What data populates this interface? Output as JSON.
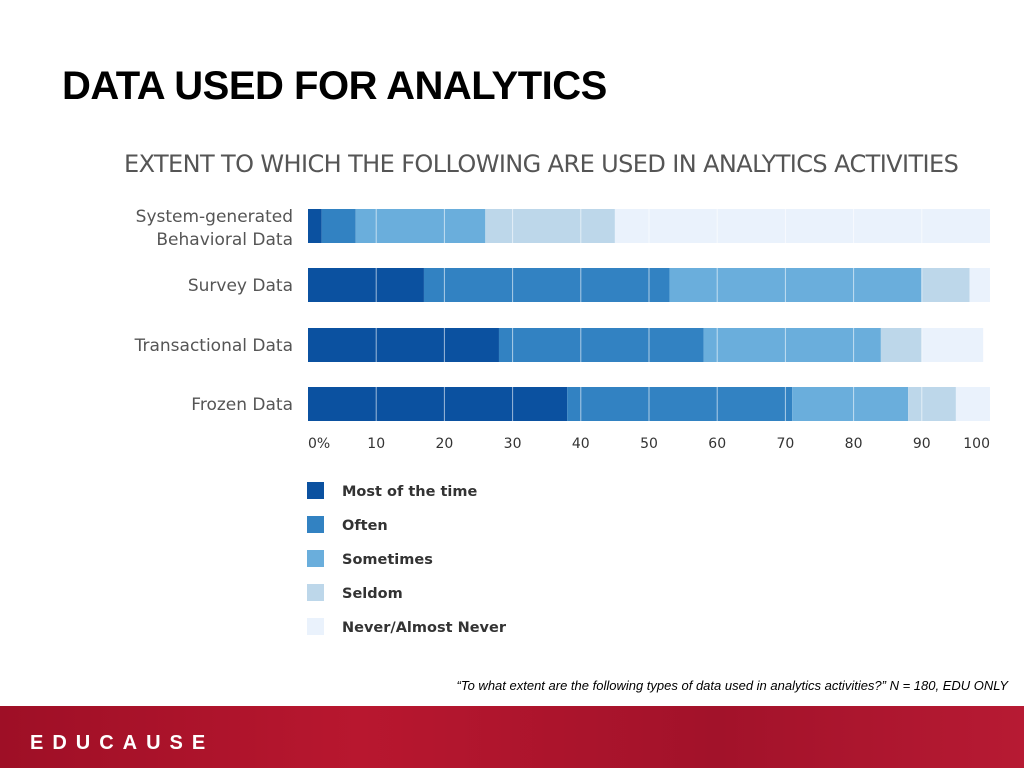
{
  "slide": {
    "title": "DATA USED FOR ANALYTICS",
    "footnote": "“To what extent are the following types of data used in analytics activities?” N = 180, EDU ONLY",
    "logo_text": "EDUCAUSE",
    "footer_color": "#a8142c"
  },
  "chart_data": {
    "type": "bar",
    "orientation": "horizontal",
    "stacked": true,
    "title": "EXTENT TO WHICH THE FOLLOWING ARE USED IN ANALYTICS ACTIVITIES",
    "categories": [
      [
        "System-generated",
        "Behavioral Data"
      ],
      [
        "Survey Data"
      ],
      [
        "Transactional Data"
      ],
      [
        "Frozen Data"
      ]
    ],
    "series": [
      {
        "name": "Most of the time",
        "color": "#0b51a0",
        "values": [
          2,
          17,
          28,
          38
        ]
      },
      {
        "name": "Often",
        "color": "#3282c2",
        "values": [
          5,
          36,
          30,
          33
        ]
      },
      {
        "name": "Sometimes",
        "color": "#6aaedc",
        "values": [
          19,
          37,
          26,
          17
        ]
      },
      {
        "name": "Seldom",
        "color": "#bdd7ea",
        "values": [
          19,
          7,
          6,
          7
        ]
      },
      {
        "name": "Never/Almost Never",
        "color": "#eaf2fc",
        "values": [
          55,
          3,
          9,
          5
        ]
      }
    ],
    "xlim": [
      0,
      100
    ],
    "xticks": [
      "0%",
      "10",
      "20",
      "30",
      "40",
      "50",
      "60",
      "70",
      "80",
      "90",
      "100"
    ],
    "grid": true,
    "legend_position": "bottom-left"
  }
}
